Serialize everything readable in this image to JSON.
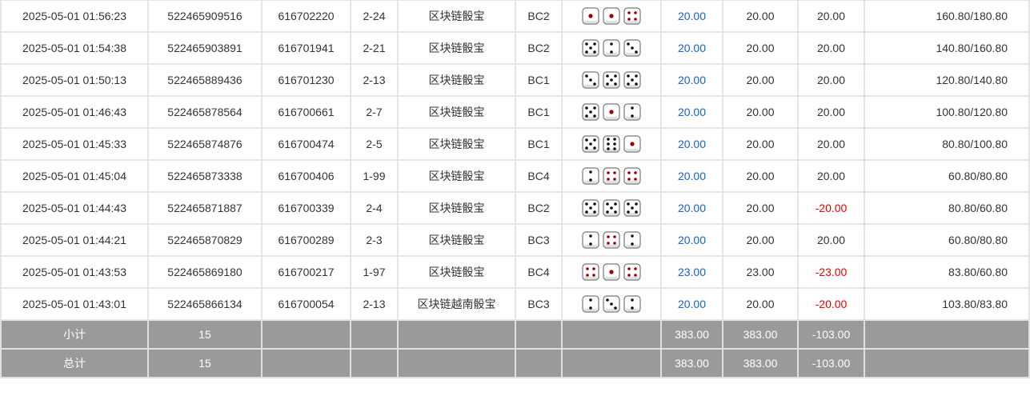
{
  "colors": {
    "bet": "#1a5fd6",
    "loss": "#e00000",
    "summary_bg": "#9a9a9a",
    "pip_red": "#a00000",
    "pip_black": "#111111"
  },
  "rows": [
    {
      "time": "2025-05-01 01:56:23",
      "order": "522465909516",
      "issue": "616702220",
      "table": "2-24",
      "game": "区块链骰宝",
      "code": "BC2",
      "dice": [
        1,
        1,
        4
      ],
      "bet": "20.00",
      "valid": "20.00",
      "win": "20.00",
      "balance": "160.80/180.80"
    },
    {
      "time": "2025-05-01 01:54:38",
      "order": "522465903891",
      "issue": "616701941",
      "table": "2-21",
      "game": "区块链骰宝",
      "code": "BC2",
      "dice": [
        5,
        2,
        3
      ],
      "bet": "20.00",
      "valid": "20.00",
      "win": "20.00",
      "balance": "140.80/160.80"
    },
    {
      "time": "2025-05-01 01:50:13",
      "order": "522465889436",
      "issue": "616701230",
      "table": "2-13",
      "game": "区块链骰宝",
      "code": "BC1",
      "dice": [
        3,
        5,
        5
      ],
      "bet": "20.00",
      "valid": "20.00",
      "win": "20.00",
      "balance": "120.80/140.80"
    },
    {
      "time": "2025-05-01 01:46:43",
      "order": "522465878564",
      "issue": "616700661",
      "table": "2-7",
      "game": "区块链骰宝",
      "code": "BC1",
      "dice": [
        5,
        1,
        2
      ],
      "bet": "20.00",
      "valid": "20.00",
      "win": "20.00",
      "balance": "100.80/120.80"
    },
    {
      "time": "2025-05-01 01:45:33",
      "order": "522465874876",
      "issue": "616700474",
      "table": "2-5",
      "game": "区块链骰宝",
      "code": "BC1",
      "dice": [
        5,
        6,
        1
      ],
      "bet": "20.00",
      "valid": "20.00",
      "win": "20.00",
      "balance": "80.80/100.80"
    },
    {
      "time": "2025-05-01 01:45:04",
      "order": "522465873338",
      "issue": "616700406",
      "table": "1-99",
      "game": "区块链骰宝",
      "code": "BC4",
      "dice": [
        2,
        4,
        4
      ],
      "bet": "20.00",
      "valid": "20.00",
      "win": "20.00",
      "balance": "60.80/80.80"
    },
    {
      "time": "2025-05-01 01:44:43",
      "order": "522465871887",
      "issue": "616700339",
      "table": "2-4",
      "game": "区块链骰宝",
      "code": "BC2",
      "dice": [
        5,
        5,
        5
      ],
      "bet": "20.00",
      "valid": "20.00",
      "win": "-20.00",
      "balance": "80.80/60.80"
    },
    {
      "time": "2025-05-01 01:44:21",
      "order": "522465870829",
      "issue": "616700289",
      "table": "2-3",
      "game": "区块链骰宝",
      "code": "BC3",
      "dice": [
        2,
        4,
        2
      ],
      "bet": "20.00",
      "valid": "20.00",
      "win": "20.00",
      "balance": "60.80/80.80"
    },
    {
      "time": "2025-05-01 01:43:53",
      "order": "522465869180",
      "issue": "616700217",
      "table": "1-97",
      "game": "区块链骰宝",
      "code": "BC4",
      "dice": [
        4,
        1,
        4
      ],
      "bet": "23.00",
      "valid": "23.00",
      "win": "-23.00",
      "balance": "83.80/60.80"
    },
    {
      "time": "2025-05-01 01:43:01",
      "order": "522465866134",
      "issue": "616700054",
      "table": "2-13",
      "game": "区块链越南骰宝",
      "code": "BC3",
      "dice": [
        2,
        3,
        2
      ],
      "bet": "20.00",
      "valid": "20.00",
      "win": "-20.00",
      "balance": "103.80/83.80"
    }
  ],
  "subtotal": {
    "label": "小计",
    "count": "15",
    "bet": "383.00",
    "valid": "383.00",
    "win": "-103.00"
  },
  "total": {
    "label": "总计",
    "count": "15",
    "bet": "383.00",
    "valid": "383.00",
    "win": "-103.00"
  }
}
